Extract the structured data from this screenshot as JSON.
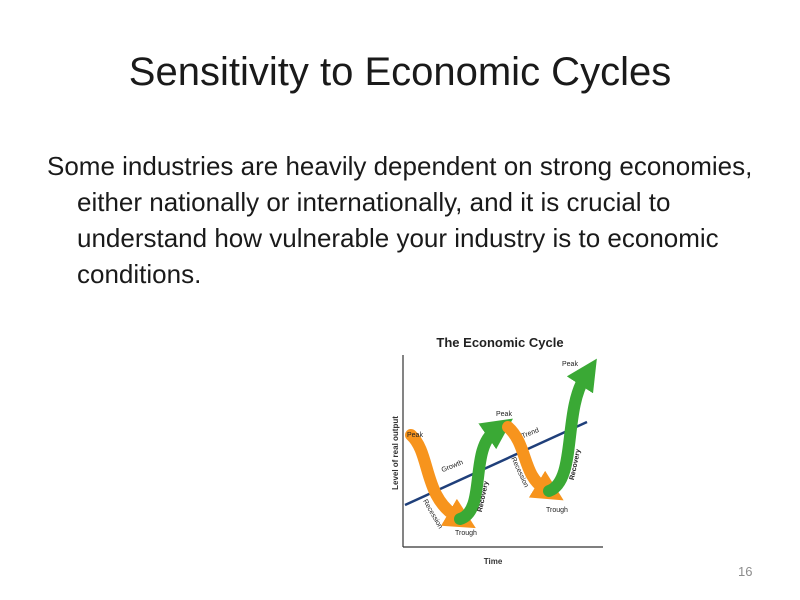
{
  "slide": {
    "title": "Sensitivity to Economic Cycles",
    "body": "Some industries are heavily dependent on strong economies, either nationally or internationally, and it is crucial to understand how vulnerable your industry is to economic conditions.",
    "page_number": "16"
  },
  "figure": {
    "title": "The Economic Cycle",
    "y_axis_label": "Level of real output",
    "x_axis_label": "Time",
    "labels": {
      "peak_1": "Peak",
      "growth": "Growth",
      "recession_1": "Recession",
      "trough_1": "Trough",
      "recovery_1": "Recovery",
      "peak_2": "Peak",
      "trend": "Trend",
      "recession_2": "Recession",
      "trough_2": "Trough",
      "recovery_2": "Recovery",
      "peak_3": "Peak"
    },
    "colors": {
      "recession": "#f7941d",
      "recovery": "#3aa935",
      "trend": "#1f3f7a",
      "axis": "#333333"
    }
  }
}
